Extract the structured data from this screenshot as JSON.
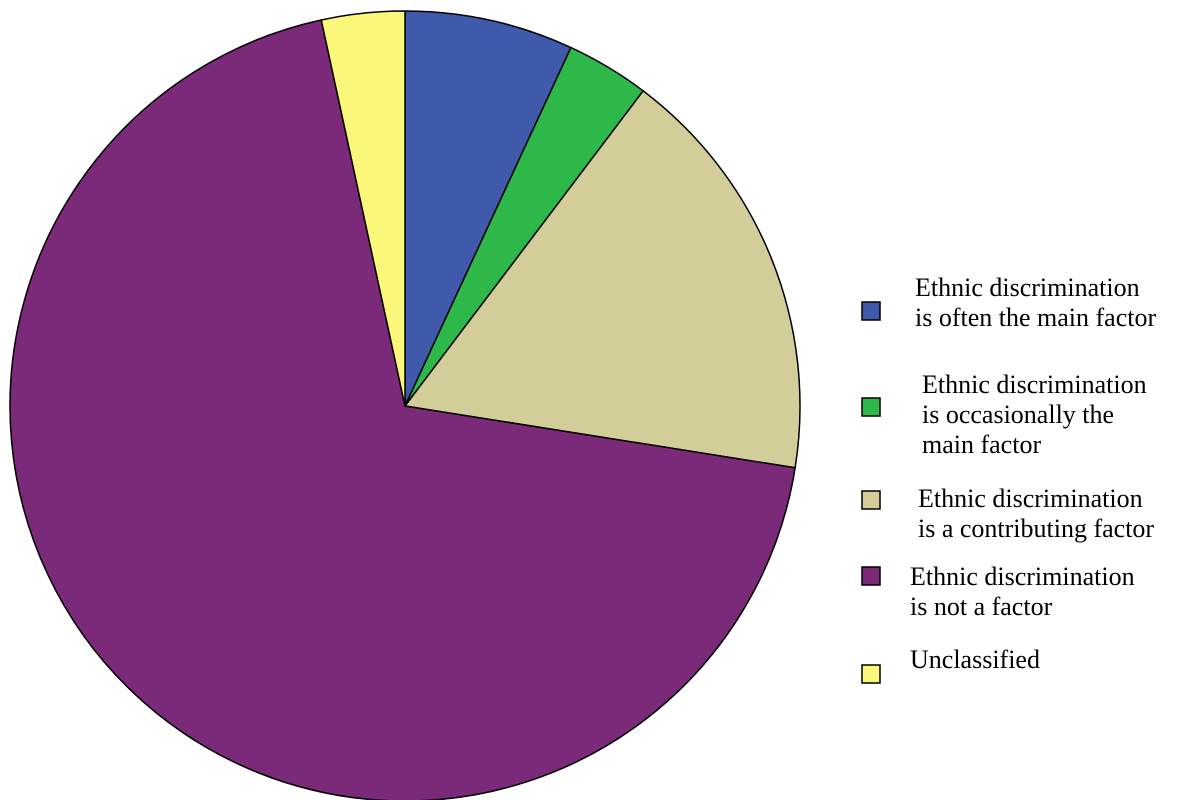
{
  "chart_data": {
    "type": "pie",
    "title": "",
    "start_angle_deg": 0,
    "direction": "clockwise",
    "slices": [
      {
        "label": "Ethnic discrimination is often the main factor",
        "label_lines": [
          "Ethnic discrimination",
          "is often the main factor"
        ],
        "value": 6.9,
        "color": "#3f5aaa"
      },
      {
        "label": "Ethnic discrimination is occasionally the main factor",
        "label_lines": [
          "Ethnic discrimination",
          "is occasionally the",
          "main factor"
        ],
        "value": 3.4,
        "color": "#2fb84a"
      },
      {
        "label": "Ethnic discrimination is a contributing factor",
        "label_lines": [
          "Ethnic discrimination",
          "is a contributing factor"
        ],
        "value": 17.2,
        "color": "#d3cd9a"
      },
      {
        "label": "Ethnic discrimination is not a factor",
        "label_lines": [
          "Ethnic discrimination",
          "is not a factor"
        ],
        "value": 69.1,
        "color": "#7b2979"
      },
      {
        "label": "Unclassified",
        "label_lines": [
          "Unclassified"
        ],
        "value": 3.4,
        "color": "#fbf77a"
      }
    ],
    "legend_position": "right"
  }
}
